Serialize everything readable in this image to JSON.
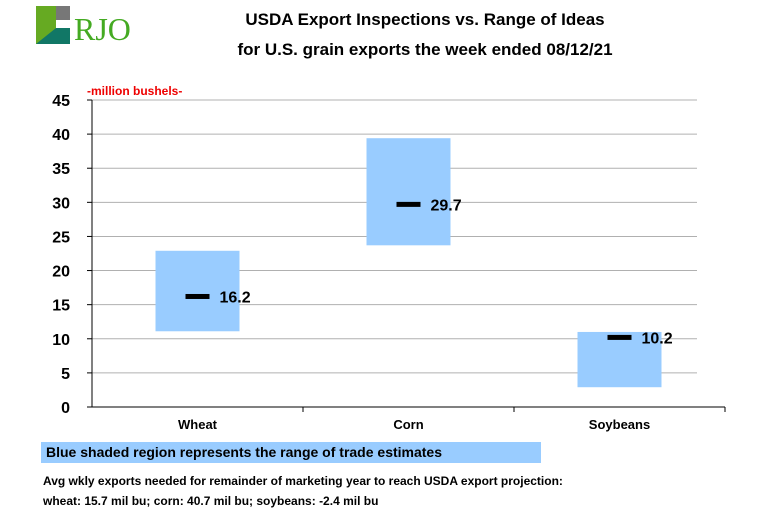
{
  "logo": {
    "text": "RJO"
  },
  "header": {
    "title_line1": "USDA Export Inspections vs. Range of Ideas",
    "title_line2": "for U.S. grain exports the week ended 08/12/21"
  },
  "unit_label": "-million bushels-",
  "legend": "Blue shaded region represents the range of trade estimates",
  "notes": [
    "Avg wkly exports needed for remainder of marketing year to reach USDA export projection:",
    "wheat: 15.7 mil bu; corn: 40.7 mil bu; soybeans: -2.4 mil bu"
  ],
  "chart_data": {
    "type": "range-bar",
    "categories": [
      "Wheat",
      "Corn",
      "Soybeans"
    ],
    "range_low": [
      11.1,
      23.7,
      2.9
    ],
    "range_high": [
      22.9,
      39.4,
      11.0
    ],
    "actual": [
      16.2,
      29.7,
      10.2
    ],
    "actual_labels": [
      "16.2",
      "29.7",
      "10.2"
    ],
    "ylim": [
      0,
      45
    ],
    "yticks": [
      0,
      5,
      10,
      15,
      20,
      25,
      30,
      35,
      40,
      45
    ],
    "grid": true,
    "colors": {
      "range": "#99ccff",
      "actual": "#000000",
      "grid": "#b0b0b0"
    }
  }
}
